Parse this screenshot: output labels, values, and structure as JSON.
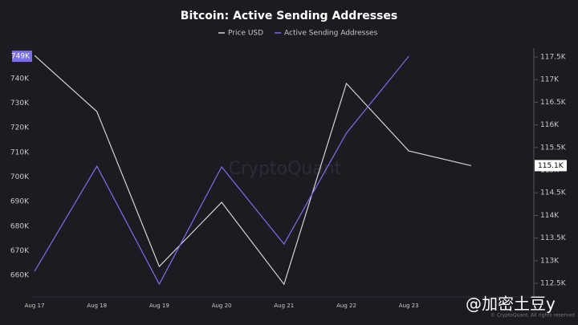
{
  "chart_data": {
    "type": "line",
    "title": "Bitcoin: Active Sending Addresses",
    "categories": [
      "Aug 17",
      "Aug 18",
      "Aug 19",
      "Aug 20",
      "Aug 21",
      "Aug 22",
      "Aug 23",
      null
    ],
    "series": [
      {
        "name": "Price USD",
        "color": "#d4d4d8",
        "axis": "y2",
        "values": [
          117535,
          116294,
          112872,
          114290,
          112480,
          116915,
          115425,
          115100
        ],
        "value_labels": [
          null,
          null,
          null,
          null,
          null,
          null,
          null,
          "115.1K"
        ]
      },
      {
        "name": "Active Sending Addresses",
        "color": "#7b6fe8",
        "values": [
          661600,
          704400,
          656400,
          704100,
          672700,
          717800,
          749100,
          null
        ],
        "value_labels": [
          null,
          null,
          null,
          null,
          null,
          null,
          "749K",
          null
        ]
      }
    ],
    "ylim": [
      651200,
      752400
    ],
    "yticks": [
      {
        "value": 660000,
        "label": "660K"
      },
      {
        "value": 670000,
        "label": "670K"
      },
      {
        "value": 680000,
        "label": "680K"
      },
      {
        "value": 690000,
        "label": "690K"
      },
      {
        "value": 700000,
        "label": "700K"
      },
      {
        "value": 710000,
        "label": "710K"
      },
      {
        "value": 720000,
        "label": "720K"
      },
      {
        "value": 730000,
        "label": "730K"
      },
      {
        "value": 740000,
        "label": "740K"
      }
    ],
    "y2lim": [
      112200,
      117695
    ],
    "y2ticks": [
      {
        "value": 112500,
        "label": "112.5K"
      },
      {
        "value": 113000,
        "label": "113K"
      },
      {
        "value": 113500,
        "label": "113.5K"
      },
      {
        "value": 114000,
        "label": "114K"
      },
      {
        "value": 114500,
        "label": "114.5K"
      },
      {
        "value": 115000,
        "label": "115K"
      },
      {
        "value": 115500,
        "label": "115.5K"
      },
      {
        "value": 116000,
        "label": "116K"
      },
      {
        "value": 116500,
        "label": "116.5K"
      },
      {
        "value": 117000,
        "label": "117K"
      },
      {
        "value": 117500,
        "label": "117.5K"
      }
    ],
    "grid": false,
    "legend": "top",
    "watermark": "CryptoQuant",
    "copyright": "© CryptoQuant. All rights reserved",
    "overlay": "@加密土豆y"
  }
}
